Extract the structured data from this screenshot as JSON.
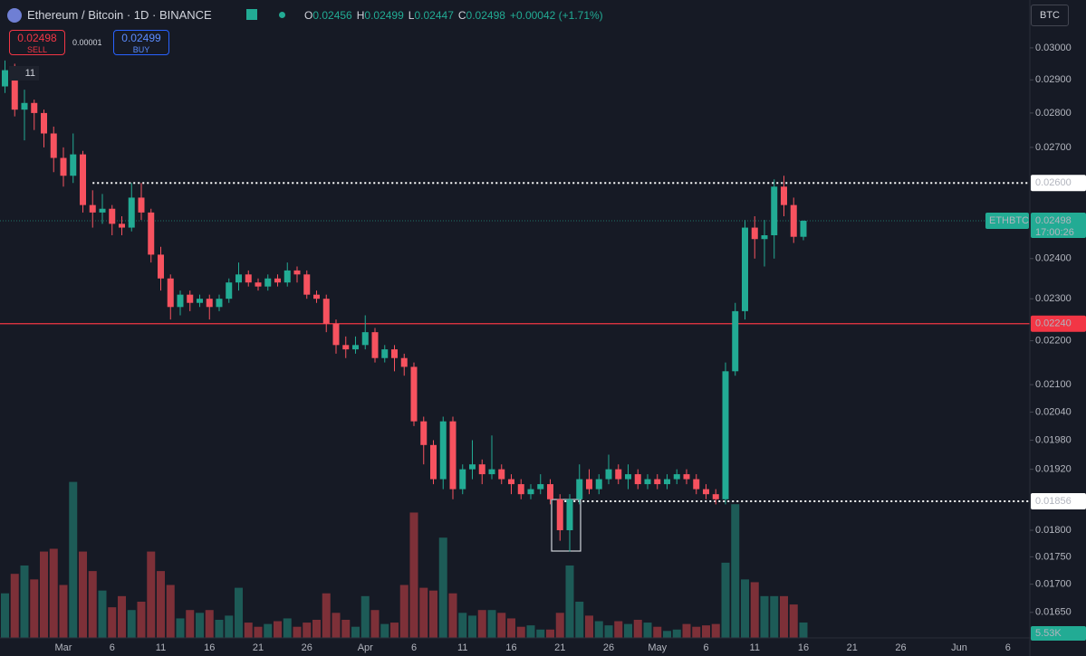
{
  "header": {
    "symbol": "Ethereum / Bitcoin · 1D · BINANCE",
    "ohlc": [
      {
        "label": "O",
        "value": "0.02456"
      },
      {
        "label": "H",
        "value": "0.02499"
      },
      {
        "label": "L",
        "value": "0.02447"
      },
      {
        "label": "C",
        "value": "0.02498"
      }
    ],
    "change": "+0.00042 (+1.71%)",
    "sell": {
      "price": "0.02498",
      "label": "SELL"
    },
    "spread": "0.00001",
    "buy": {
      "price": "0.02499",
      "label": "BUY"
    },
    "indicators": "11",
    "currency": "BTC"
  },
  "chart_data": {
    "type": "candlestick",
    "scale": "log",
    "categories": [
      null,
      null,
      null,
      null,
      null,
      null,
      "Mar",
      null,
      null,
      null,
      null,
      "6",
      null,
      null,
      null,
      null,
      "11",
      null,
      null,
      null,
      null,
      "16",
      null,
      null,
      null,
      null,
      "21",
      null,
      null,
      null,
      null,
      "26",
      null,
      null,
      null,
      null,
      null,
      "Apr",
      null,
      null,
      null,
      null,
      "6",
      null,
      null,
      null,
      null,
      "11",
      null,
      null,
      null,
      null,
      "16",
      null,
      null,
      null,
      null,
      "21",
      null,
      null,
      null,
      null,
      "26",
      null,
      null,
      null,
      null,
      "May",
      null,
      null,
      null,
      null,
      "6",
      null,
      null,
      null,
      null,
      "11",
      null,
      null,
      null,
      null,
      "16",
      null,
      null,
      null,
      null,
      "21",
      null,
      null,
      null,
      null,
      "26",
      null,
      null,
      null,
      null,
      null,
      "Jun",
      null,
      null,
      null,
      null,
      "6"
    ],
    "open": [
      0.0288,
      0.0293,
      0.0281,
      0.0283,
      0.028,
      0.0274,
      0.0267,
      0.0262,
      0.0268,
      0.0254,
      0.0252,
      0.0253,
      0.0249,
      0.0248,
      0.0256,
      0.0252,
      0.0241,
      0.0235,
      0.0228,
      0.0231,
      0.0229,
      0.023,
      0.0228,
      0.023,
      0.0234,
      0.0236,
      0.0234,
      0.0233,
      0.0235,
      0.0234,
      0.0237,
      0.0236,
      0.0231,
      0.023,
      0.0224,
      0.0219,
      0.0218,
      0.0219,
      0.0222,
      0.0216,
      0.0218,
      0.0216,
      0.0214,
      0.0202,
      0.0197,
      0.019,
      0.0202,
      0.0188,
      0.0192,
      0.0193,
      0.0191,
      0.0192,
      0.019,
      0.0189,
      0.0187,
      0.0188,
      0.0189,
      0.0186,
      0.018,
      0.0186,
      0.019,
      0.0188,
      0.019,
      0.0192,
      0.019,
      0.0191,
      0.0189,
      0.019,
      0.0189,
      0.019,
      0.0191,
      0.019,
      0.0188,
      0.0187,
      0.0186,
      0.0213,
      0.0227,
      0.0248,
      0.0245,
      0.0246,
      0.0259,
      0.0254,
      0.02456,
      null,
      null,
      null,
      null,
      null,
      null,
      null,
      null,
      null,
      null,
      null,
      null,
      null,
      null,
      null,
      null,
      null,
      null,
      null,
      null,
      null
    ],
    "high": [
      0.0296,
      0.0295,
      0.0287,
      0.0284,
      0.0281,
      0.0276,
      0.027,
      0.0274,
      0.0269,
      0.0258,
      0.0257,
      0.0254,
      0.0251,
      0.026,
      0.026,
      0.0253,
      0.0243,
      0.0236,
      0.0232,
      0.0232,
      0.0231,
      0.0231,
      0.0231,
      0.0235,
      0.0239,
      0.0237,
      0.0235,
      0.0236,
      0.0236,
      0.0239,
      0.0238,
      0.0237,
      0.0232,
      0.0231,
      0.0225,
      0.0221,
      0.0221,
      0.0226,
      0.0223,
      0.0219,
      0.0219,
      0.0217,
      0.0215,
      0.0203,
      0.0198,
      0.0203,
      0.0203,
      0.0193,
      0.0198,
      0.0194,
      0.0199,
      0.0193,
      0.0191,
      0.019,
      0.0189,
      0.0191,
      0.019,
      0.0187,
      0.0187,
      0.0193,
      0.0192,
      0.0191,
      0.0195,
      0.0193,
      0.0193,
      0.0192,
      0.0191,
      0.0191,
      0.0191,
      0.0192,
      0.0192,
      0.0191,
      0.0189,
      0.0188,
      0.0215,
      0.0229,
      0.025,
      0.0251,
      0.025,
      0.0261,
      0.0262,
      0.0256,
      0.02499,
      null,
      null,
      null,
      null,
      null,
      null,
      null,
      null,
      null,
      null,
      null,
      null,
      null,
      null,
      null,
      null,
      null,
      null,
      null,
      null,
      null
    ],
    "low": [
      0.0286,
      0.0279,
      0.0272,
      0.0275,
      0.027,
      0.0263,
      0.0259,
      0.026,
      0.0252,
      0.0248,
      0.0249,
      0.0246,
      0.0246,
      0.0247,
      0.025,
      0.0239,
      0.0232,
      0.0225,
      0.0226,
      0.0227,
      0.0228,
      0.0225,
      0.0227,
      0.0229,
      0.0232,
      0.0233,
      0.0232,
      0.0232,
      0.0233,
      0.0233,
      0.0234,
      0.023,
      0.0229,
      0.0222,
      0.0217,
      0.0216,
      0.0217,
      0.0218,
      0.0215,
      0.0215,
      0.0213,
      0.0212,
      0.0201,
      0.0193,
      0.0189,
      0.0188,
      0.0186,
      0.0187,
      0.019,
      0.0189,
      0.019,
      0.0189,
      0.0187,
      0.0186,
      0.0186,
      0.0187,
      0.0185,
      0.0178,
      0.0176,
      0.0185,
      0.0187,
      0.0187,
      0.0189,
      0.0189,
      0.0188,
      0.0188,
      0.0188,
      0.0188,
      0.0188,
      0.0189,
      0.0189,
      0.0187,
      0.0186,
      0.0185,
      0.0185,
      0.0212,
      0.0225,
      0.024,
      0.0238,
      0.024,
      0.0251,
      0.0244,
      0.02447,
      null,
      null,
      null,
      null,
      null,
      null,
      null,
      null,
      null,
      null,
      null,
      null,
      null,
      null,
      null,
      null,
      null,
      null,
      null,
      null,
      null
    ],
    "close": [
      0.0293,
      0.0281,
      0.0283,
      0.028,
      0.0274,
      0.0267,
      0.0262,
      0.0268,
      0.0254,
      0.0252,
      0.0253,
      0.0249,
      0.0248,
      0.0256,
      0.0252,
      0.0241,
      0.0235,
      0.0228,
      0.0231,
      0.0229,
      0.023,
      0.0228,
      0.023,
      0.0234,
      0.0236,
      0.0234,
      0.0233,
      0.0235,
      0.0234,
      0.0237,
      0.0236,
      0.0231,
      0.023,
      0.0224,
      0.0219,
      0.0218,
      0.0219,
      0.0222,
      0.0216,
      0.0218,
      0.0216,
      0.0214,
      0.0202,
      0.0197,
      0.019,
      0.0202,
      0.0188,
      0.0192,
      0.0193,
      0.0191,
      0.0192,
      0.019,
      0.0189,
      0.0187,
      0.0188,
      0.0189,
      0.0186,
      0.018,
      0.0186,
      0.019,
      0.0188,
      0.019,
      0.0192,
      0.019,
      0.0191,
      0.0189,
      0.019,
      0.0189,
      0.019,
      0.0191,
      0.019,
      0.0188,
      0.0187,
      0.0186,
      0.0213,
      0.0227,
      0.0248,
      0.0245,
      0.0246,
      0.0259,
      0.0254,
      0.02456,
      0.02498,
      null,
      null,
      null,
      null,
      null,
      null,
      null,
      null,
      null,
      null,
      null,
      null,
      null,
      null,
      null,
      null,
      null,
      null,
      null,
      null,
      null
    ],
    "volume": [
      16,
      23,
      26,
      21,
      31,
      32,
      19,
      56,
      31,
      24,
      17,
      11,
      15,
      10,
      13,
      31,
      24,
      19,
      7,
      10,
      9,
      10,
      6.5,
      8,
      18,
      5.5,
      4,
      5,
      6,
      7,
      4,
      5.5,
      6.5,
      16,
      9,
      6.5,
      4,
      15,
      10,
      5,
      5.5,
      19,
      45,
      18,
      17,
      36,
      16,
      9,
      8,
      10,
      10,
      9,
      7,
      4,
      4.5,
      3,
      3,
      9,
      26,
      13,
      8,
      6,
      4.5,
      6,
      5,
      6.5,
      5.5,
      4,
      2.5,
      3,
      5,
      4,
      4.5,
      5,
      27,
      48,
      21,
      20,
      15,
      15,
      15,
      12,
      5.53,
      null,
      null,
      null,
      null,
      null,
      null,
      null,
      null,
      null,
      null,
      null,
      null,
      null,
      null,
      null,
      null,
      null,
      null,
      null,
      null,
      null
    ],
    "up_color": "#22ab94",
    "down_color": "#f7525f",
    "volume_up_color": "#1d5b57",
    "volume_down_color": "#7d3038",
    "ylim": [
      0.01606,
      0.03156
    ],
    "y2lim": [
      0,
      229
    ],
    "yticks": [
      {
        "value": 0.03,
        "label": "0.03000"
      },
      {
        "value": 0.029,
        "label": "0.02900"
      },
      {
        "value": 0.028,
        "label": "0.02800"
      },
      {
        "value": 0.027,
        "label": "0.02700"
      },
      {
        "value": 0.024,
        "label": "0.02400"
      },
      {
        "value": 0.023,
        "label": "0.02300"
      },
      {
        "value": 0.022,
        "label": "0.02200"
      },
      {
        "value": 0.021,
        "label": "0.02100"
      },
      {
        "value": 0.0204,
        "label": "0.02040"
      },
      {
        "value": 0.0198,
        "label": "0.01980"
      },
      {
        "value": 0.0192,
        "label": "0.01920"
      },
      {
        "value": 0.018,
        "label": "0.01800"
      },
      {
        "value": 0.0175,
        "label": "0.01750"
      },
      {
        "value": 0.017,
        "label": "0.01700"
      },
      {
        "value": 0.0165,
        "label": "0.01650"
      }
    ],
    "price_lines": [
      {
        "value": 0.026,
        "label": "0.02600",
        "style": "dotted",
        "color": "#ffffff"
      },
      {
        "value": 0.0224,
        "label": "0.02240",
        "style": "solid",
        "color": "#f23645"
      },
      {
        "value": 0.01856,
        "label": "0.01856",
        "style": "dotted",
        "color": "#ffffff"
      }
    ],
    "last": {
      "symbol": "ETHBTC",
      "value": 0.02498,
      "label": "0.02498",
      "countdown": "17:00:26",
      "color": "#22ab94"
    },
    "volume_last": {
      "value": 5.53,
      "label": "5.53K"
    }
  }
}
